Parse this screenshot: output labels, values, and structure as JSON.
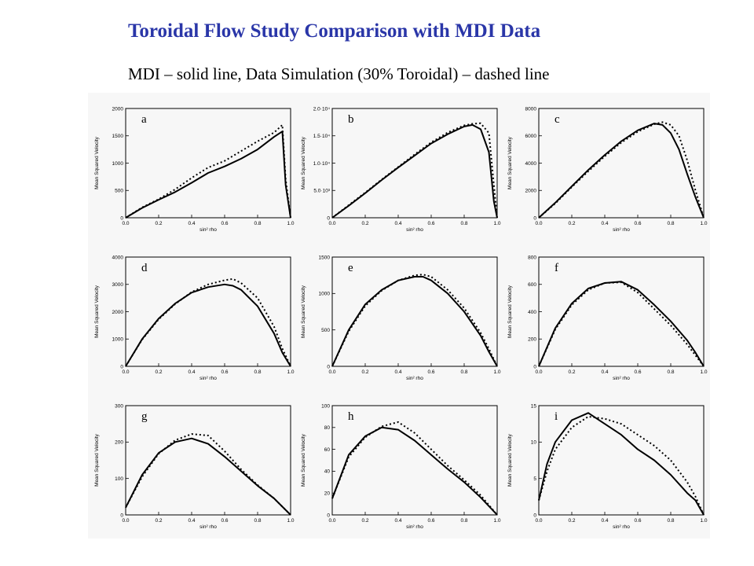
{
  "title": "Toroidal Flow Study Comparison with MDI Data",
  "subtitle": "MDI – solid line, Data Simulation (30% Toroidal) – dashed line",
  "chart_data": [
    {
      "type": "line",
      "panel": "a",
      "xlabel": "sin² rho",
      "ylabel": "Mean Squared Velocity",
      "xlim": [
        0,
        1
      ],
      "ylim": [
        0,
        2000
      ],
      "xticks": [
        "0.0",
        "0.2",
        "0.4",
        "0.6",
        "0.8",
        "1.0"
      ],
      "yticks": [
        "0",
        "500",
        "1000",
        "1500",
        "2000"
      ],
      "x": [
        0.0,
        0.1,
        0.2,
        0.3,
        0.4,
        0.5,
        0.6,
        0.7,
        0.8,
        0.9,
        0.95,
        0.97,
        1.0
      ],
      "series": [
        {
          "style": "solid",
          "values": [
            0,
            180,
            330,
            470,
            640,
            820,
            940,
            1080,
            1250,
            1480,
            1580,
            600,
            0
          ]
        },
        {
          "style": "dashed",
          "values": [
            0,
            190,
            340,
            520,
            730,
            920,
            1040,
            1220,
            1400,
            1560,
            1700,
            700,
            0
          ]
        }
      ]
    },
    {
      "type": "line",
      "panel": "b",
      "xlabel": "sin² rho",
      "ylabel": "Mean Squared Velocity",
      "xlim": [
        0,
        1
      ],
      "ylim": [
        0,
        20000
      ],
      "xticks": [
        "0.0",
        "0.2",
        "0.4",
        "0.6",
        "0.8",
        "1.0"
      ],
      "yticks": [
        "0",
        "5.0·10³",
        "1.0·10⁴",
        "1.5·10⁴",
        "2.0·10⁴"
      ],
      "x": [
        0.0,
        0.1,
        0.2,
        0.3,
        0.4,
        0.5,
        0.6,
        0.7,
        0.8,
        0.85,
        0.9,
        0.95,
        0.98,
        1.0
      ],
      "series": [
        {
          "style": "solid",
          "values": [
            0,
            2200,
            4500,
            6900,
            9200,
            11400,
            13600,
            15300,
            16700,
            17000,
            16200,
            12000,
            3000,
            0
          ]
        },
        {
          "style": "dashed",
          "values": [
            0,
            2300,
            4600,
            7000,
            9300,
            11600,
            13800,
            15600,
            16900,
            17200,
            17300,
            15500,
            6000,
            0
          ]
        }
      ]
    },
    {
      "type": "line",
      "panel": "c",
      "xlabel": "sin² rho",
      "ylabel": "Mean Squared Velocity",
      "xlim": [
        0,
        1
      ],
      "ylim": [
        0,
        8000
      ],
      "xticks": [
        "0.0",
        "0.2",
        "0.4",
        "0.6",
        "0.8",
        "1.0"
      ],
      "yticks": [
        "0",
        "2000",
        "4000",
        "6000",
        "8000"
      ],
      "x": [
        0.0,
        0.1,
        0.2,
        0.3,
        0.4,
        0.5,
        0.6,
        0.7,
        0.75,
        0.8,
        0.85,
        0.9,
        0.95,
        1.0
      ],
      "series": [
        {
          "style": "solid",
          "values": [
            0,
            1100,
            2300,
            3500,
            4600,
            5600,
            6400,
            6900,
            6800,
            6200,
            5000,
            3200,
            1500,
            0
          ]
        },
        {
          "style": "dashed",
          "values": [
            0,
            1050,
            2250,
            3400,
            4500,
            5500,
            6300,
            6850,
            7000,
            6800,
            6000,
            4200,
            2000,
            0
          ]
        }
      ]
    },
    {
      "type": "line",
      "panel": "d",
      "xlabel": "sin² rho",
      "ylabel": "Mean Squared Velocity",
      "xlim": [
        0,
        1
      ],
      "ylim": [
        0,
        4000
      ],
      "xticks": [
        "0.0",
        "0.2",
        "0.4",
        "0.6",
        "0.8",
        "1.0"
      ],
      "yticks": [
        "0",
        "1000",
        "2000",
        "3000",
        "4000"
      ],
      "x": [
        0.0,
        0.1,
        0.2,
        0.3,
        0.4,
        0.5,
        0.6,
        0.65,
        0.7,
        0.8,
        0.9,
        0.95,
        1.0
      ],
      "series": [
        {
          "style": "solid",
          "values": [
            0,
            1000,
            1750,
            2300,
            2700,
            2900,
            3000,
            2950,
            2800,
            2200,
            1200,
            500,
            0
          ]
        },
        {
          "style": "dashed",
          "values": [
            0,
            980,
            1720,
            2280,
            2720,
            3000,
            3150,
            3200,
            3050,
            2500,
            1450,
            650,
            0
          ]
        }
      ]
    },
    {
      "type": "line",
      "panel": "e",
      "xlabel": "sin² rho",
      "ylabel": "Mean Squared Velocity",
      "xlim": [
        0,
        1
      ],
      "ylim": [
        0,
        1500
      ],
      "xticks": [
        "0.0",
        "0.2",
        "0.4",
        "0.6",
        "0.8",
        "1.0"
      ],
      "yticks": [
        "0",
        "500",
        "1000",
        "1500"
      ],
      "x": [
        0.0,
        0.1,
        0.2,
        0.3,
        0.4,
        0.5,
        0.55,
        0.6,
        0.7,
        0.8,
        0.9,
        0.95,
        1.0
      ],
      "series": [
        {
          "style": "solid",
          "values": [
            0,
            500,
            850,
            1050,
            1180,
            1230,
            1230,
            1180,
            1000,
            750,
            420,
            200,
            0
          ]
        },
        {
          "style": "dashed",
          "values": [
            0,
            480,
            830,
            1040,
            1180,
            1250,
            1260,
            1230,
            1050,
            800,
            460,
            240,
            0
          ]
        }
      ]
    },
    {
      "type": "line",
      "panel": "f",
      "xlabel": "sin² rho",
      "ylabel": "Mean Squared Velocity",
      "xlim": [
        0,
        1
      ],
      "ylim": [
        0,
        800
      ],
      "xticks": [
        "0.0",
        "0.2",
        "0.4",
        "0.6",
        "0.8",
        "1.0"
      ],
      "yticks": [
        "0",
        "200",
        "400",
        "600",
        "800"
      ],
      "x": [
        0.0,
        0.1,
        0.2,
        0.3,
        0.4,
        0.5,
        0.6,
        0.7,
        0.8,
        0.9,
        0.95,
        1.0
      ],
      "series": [
        {
          "style": "solid",
          "values": [
            0,
            280,
            460,
            570,
            610,
            620,
            560,
            450,
            330,
            190,
            100,
            0
          ]
        },
        {
          "style": "dashed",
          "values": [
            0,
            270,
            450,
            560,
            610,
            615,
            540,
            420,
            300,
            160,
            80,
            0
          ]
        }
      ]
    },
    {
      "type": "line",
      "panel": "g",
      "xlabel": "sin² rho",
      "ylabel": "Mean Squared Velocity",
      "xlim": [
        0,
        1
      ],
      "ylim": [
        0,
        300
      ],
      "xticks": [
        "0.0",
        "0.2",
        "0.4",
        "0.6",
        "0.8",
        "1.0"
      ],
      "yticks": [
        "0",
        "100",
        "200",
        "300"
      ],
      "x": [
        0.0,
        0.1,
        0.2,
        0.3,
        0.4,
        0.5,
        0.6,
        0.7,
        0.8,
        0.9,
        1.0
      ],
      "series": [
        {
          "style": "solid",
          "values": [
            20,
            110,
            170,
            200,
            210,
            195,
            160,
            120,
            80,
            45,
            0
          ]
        },
        {
          "style": "dashed",
          "values": [
            20,
            105,
            168,
            205,
            222,
            218,
            175,
            125,
            82,
            45,
            0
          ]
        }
      ]
    },
    {
      "type": "line",
      "panel": "h",
      "xlabel": "sin² rho",
      "ylabel": "Mean Squared Velocity",
      "xlim": [
        0,
        1
      ],
      "ylim": [
        0,
        100
      ],
      "xticks": [
        "0.0",
        "0.2",
        "0.4",
        "0.6",
        "0.8",
        "1.0"
      ],
      "yticks": [
        "0",
        "20",
        "40",
        "60",
        "80",
        "100"
      ],
      "x": [
        0.0,
        0.1,
        0.2,
        0.3,
        0.4,
        0.5,
        0.6,
        0.7,
        0.8,
        0.9,
        1.0
      ],
      "series": [
        {
          "style": "solid",
          "values": [
            15,
            55,
            72,
            80,
            78,
            68,
            55,
            42,
            30,
            16,
            0
          ]
        },
        {
          "style": "dashed",
          "values": [
            15,
            53,
            71,
            81,
            85,
            75,
            60,
            45,
            32,
            18,
            0
          ]
        }
      ]
    },
    {
      "type": "line",
      "panel": "i",
      "xlabel": "sin² rho",
      "ylabel": "Mean Squared Velocity",
      "xlim": [
        0,
        1
      ],
      "ylim": [
        0,
        15
      ],
      "xticks": [
        "0.0",
        "0.2",
        "0.4",
        "0.6",
        "0.8",
        "1.0"
      ],
      "yticks": [
        "0",
        "5",
        "10",
        "15"
      ],
      "x": [
        0.0,
        0.05,
        0.1,
        0.2,
        0.3,
        0.4,
        0.5,
        0.6,
        0.7,
        0.8,
        0.9,
        0.95,
        1.0
      ],
      "series": [
        {
          "style": "solid",
          "values": [
            2,
            7,
            10,
            13,
            14,
            12.5,
            11,
            9,
            7.5,
            5.5,
            3,
            2,
            0
          ]
        },
        {
          "style": "dashed",
          "values": [
            2,
            6,
            9,
            12,
            13.5,
            13.2,
            12.5,
            11,
            9.5,
            7.5,
            4.5,
            2.5,
            0
          ]
        }
      ]
    }
  ]
}
